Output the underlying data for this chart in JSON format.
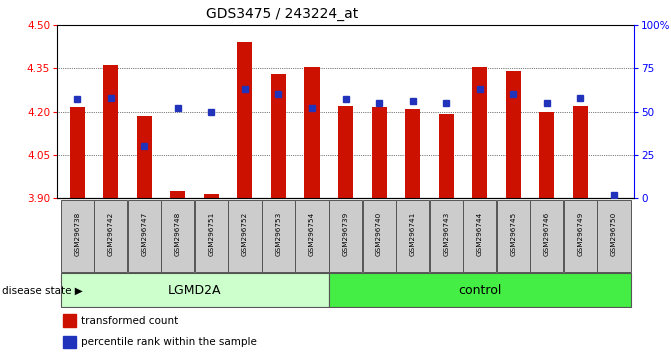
{
  "title": "GDS3475 / 243224_at",
  "samples": [
    "GSM296738",
    "GSM296742",
    "GSM296747",
    "GSM296748",
    "GSM296751",
    "GSM296752",
    "GSM296753",
    "GSM296754",
    "GSM296739",
    "GSM296740",
    "GSM296741",
    "GSM296743",
    "GSM296744",
    "GSM296745",
    "GSM296746",
    "GSM296749",
    "GSM296750"
  ],
  "red_values": [
    4.215,
    4.36,
    4.185,
    3.925,
    3.915,
    4.44,
    4.33,
    4.355,
    4.22,
    4.215,
    4.21,
    4.19,
    4.355,
    4.34,
    4.2,
    4.22,
    3.9
  ],
  "blue_values": [
    57,
    58,
    30,
    52,
    50,
    63,
    60,
    52,
    57,
    55,
    56,
    55,
    63,
    60,
    55,
    58,
    2
  ],
  "ymin": 3.9,
  "ymax": 4.5,
  "y_ticks": [
    3.9,
    4.05,
    4.2,
    4.35,
    4.5
  ],
  "y2max": 100,
  "y2_ticks": [
    0,
    25,
    50,
    75,
    100
  ],
  "y2_tick_labels": [
    "0",
    "25",
    "50",
    "75",
    "100%"
  ],
  "group1_label": "LGMD2A",
  "group2_label": "control",
  "group1_count": 8,
  "group2_count": 9,
  "legend_red": "transformed count",
  "legend_blue": "percentile rank within the sample",
  "disease_state_label": "disease state",
  "bar_color": "#cc1100",
  "dot_color": "#2233bb",
  "group1_bg": "#ccffcc",
  "group2_bg": "#44ee44",
  "xlabel_bg": "#cccccc",
  "bar_width": 0.45
}
